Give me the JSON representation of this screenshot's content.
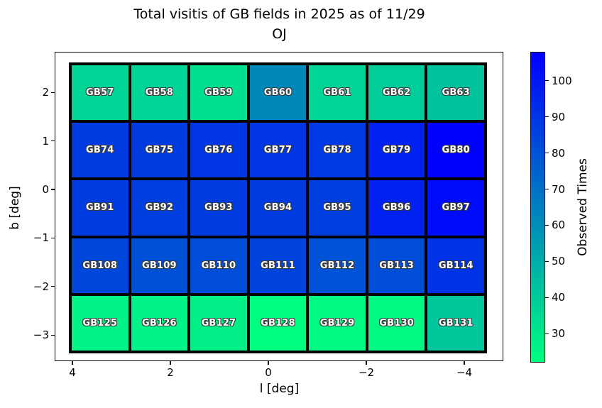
{
  "figure": {
    "title_line1": "Total visitis of GB fields in 2025 as of 11/29",
    "title_line2": "OJ",
    "xlabel": "l [deg]",
    "ylabel": "b [deg]"
  },
  "chart_data": {
    "type": "heatmap",
    "title": "Total visitis of GB fields in 2025 as of 11/29 OJ",
    "xlabel": "l [deg]",
    "ylabel": "b [deg]",
    "colormap": "winter_r",
    "grid_on": false,
    "xlim": [
      4.4,
      -4.8
    ],
    "ylim": [
      -3.5,
      2.8
    ],
    "x_tick_values": [
      4,
      2,
      0,
      -2,
      -4
    ],
    "x_tick_labels": [
      "4",
      "2",
      "0",
      "−2",
      "−4"
    ],
    "y_tick_values": [
      2,
      1,
      0,
      -1,
      -2,
      -3
    ],
    "y_tick_labels": [
      "2",
      "1",
      "0",
      "−1",
      "−2",
      "−3"
    ],
    "vmin": 22,
    "vmax": 108,
    "rows": [
      {
        "cells": [
          {
            "name": "GB57",
            "value": 36
          },
          {
            "name": "GB58",
            "value": 36
          },
          {
            "name": "GB59",
            "value": 32
          },
          {
            "name": "GB60",
            "value": 62
          },
          {
            "name": "GB61",
            "value": 36
          },
          {
            "name": "GB62",
            "value": 39
          },
          {
            "name": "GB63",
            "value": 42
          }
        ]
      },
      {
        "cells": [
          {
            "name": "GB74",
            "value": 88
          },
          {
            "name": "GB75",
            "value": 88
          },
          {
            "name": "GB76",
            "value": 90
          },
          {
            "name": "GB77",
            "value": 90
          },
          {
            "name": "GB78",
            "value": 89
          },
          {
            "name": "GB79",
            "value": 97
          },
          {
            "name": "GB80",
            "value": 108
          }
        ]
      },
      {
        "cells": [
          {
            "name": "GB91",
            "value": 88
          },
          {
            "name": "GB92",
            "value": 87
          },
          {
            "name": "GB93",
            "value": 88
          },
          {
            "name": "GB94",
            "value": 88
          },
          {
            "name": "GB95",
            "value": 87
          },
          {
            "name": "GB96",
            "value": 97
          },
          {
            "name": "GB97",
            "value": 104
          }
        ]
      },
      {
        "cells": [
          {
            "name": "GB108",
            "value": 84
          },
          {
            "name": "GB109",
            "value": 81
          },
          {
            "name": "GB110",
            "value": 82
          },
          {
            "name": "GB111",
            "value": 85
          },
          {
            "name": "GB112",
            "value": 80
          },
          {
            "name": "GB113",
            "value": 82
          },
          {
            "name": "GB114",
            "value": 91
          }
        ]
      },
      {
        "cells": [
          {
            "name": "GB125",
            "value": 26
          },
          {
            "name": "GB126",
            "value": 26
          },
          {
            "name": "GB127",
            "value": 27
          },
          {
            "name": "GB128",
            "value": 22
          },
          {
            "name": "GB129",
            "value": 24
          },
          {
            "name": "GB130",
            "value": 24
          },
          {
            "name": "GB131",
            "value": 41
          }
        ]
      }
    ],
    "colorbar": {
      "label": "Observed Times",
      "tick_values": [
        100,
        90,
        80,
        70,
        60,
        50,
        40,
        30
      ],
      "tick_labels": [
        "100",
        "90",
        "80",
        "70",
        "60",
        "50",
        "40",
        "30"
      ],
      "top_color": "#0000ff",
      "bottom_color": "#00ff80",
      "legend_position": "right"
    }
  }
}
